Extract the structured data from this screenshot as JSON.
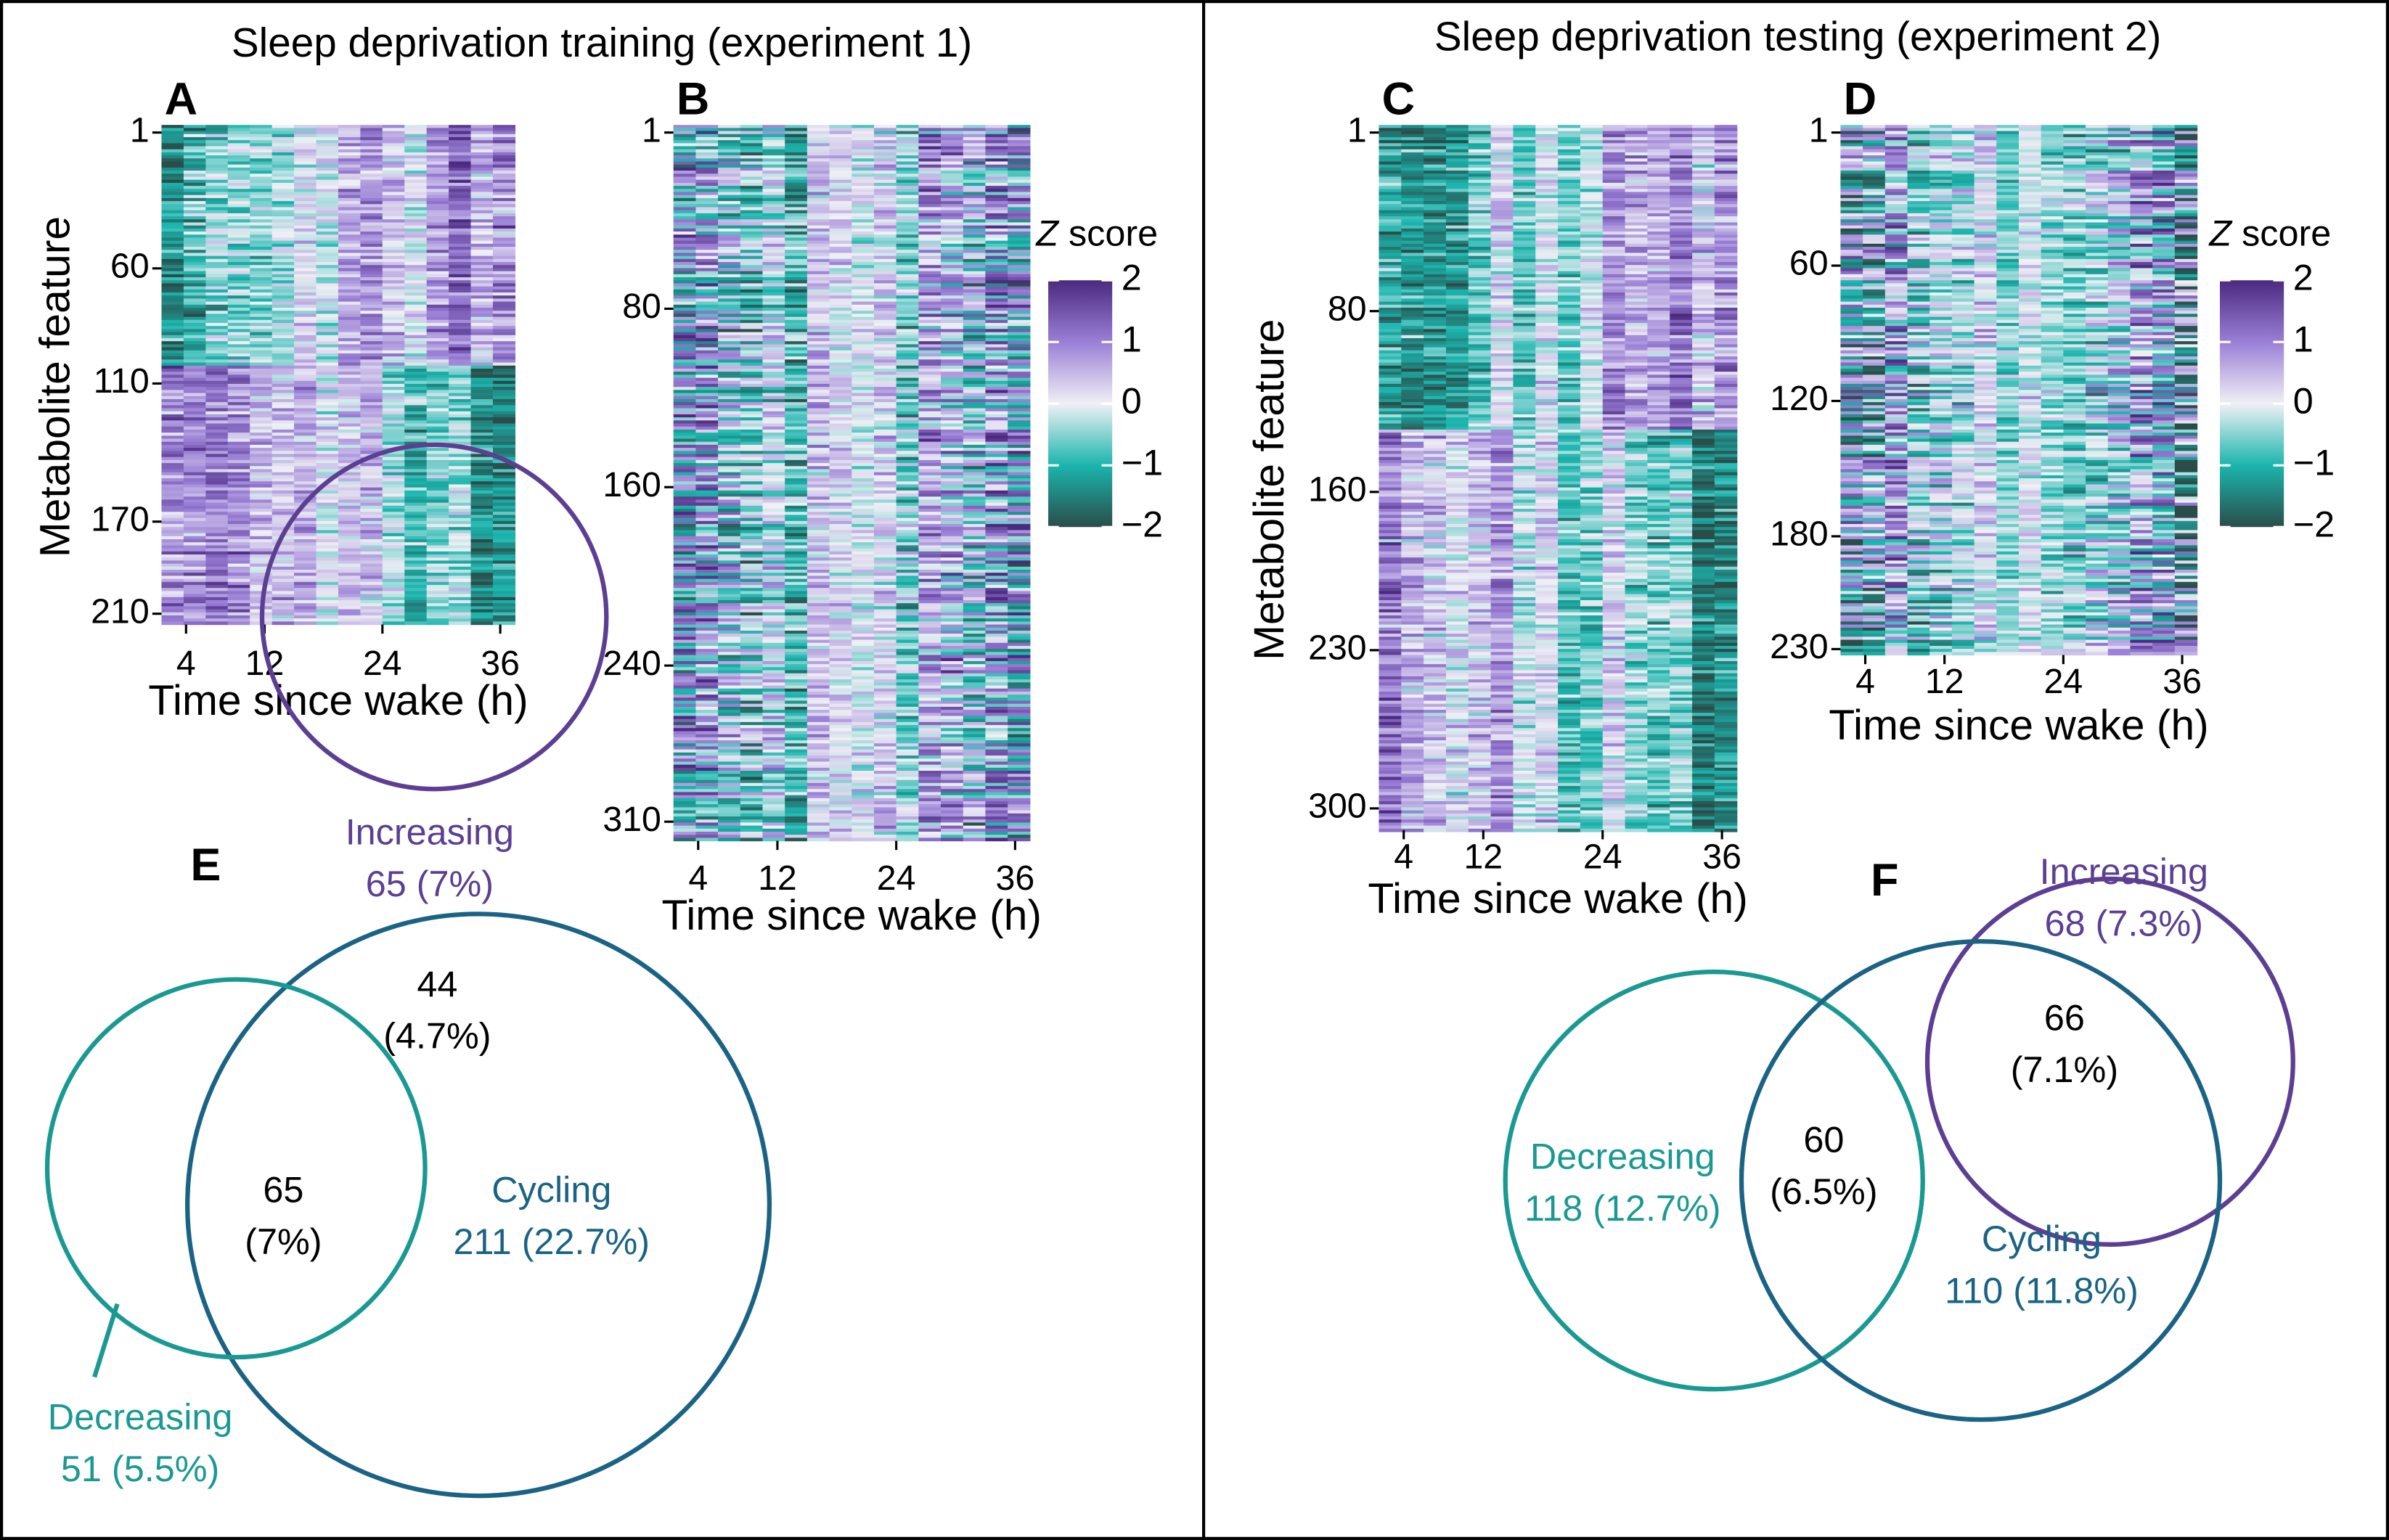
{
  "panels": [
    {
      "title": "Sleep deprivation training (experiment 1)"
    },
    {
      "title": "Sleep deprivation testing (experiment 2)"
    }
  ],
  "heatmaps": [
    {
      "label": "A",
      "y_axis_label": "Metabolite feature",
      "ylim": [
        1,
        218
      ],
      "yticks": [
        1,
        60,
        110,
        170,
        210
      ],
      "xlim": [
        1.5,
        37.5
      ],
      "xticks": [
        4,
        12,
        24,
        36
      ],
      "x_axis_label": "Time since wake (h)"
    },
    {
      "label": "B",
      "ylim": [
        1,
        322
      ],
      "yticks": [
        1,
        80,
        160,
        240,
        310
      ],
      "xlim": [
        1.5,
        37.5
      ],
      "xticks": [
        4,
        12,
        24,
        36
      ],
      "x_axis_label": "Time since wake (h)"
    },
    {
      "label": "C",
      "y_axis_label": "Metabolite feature",
      "ylim": [
        1,
        313
      ],
      "yticks": [
        1,
        80,
        160,
        230,
        300
      ],
      "xlim": [
        1.5,
        37.5
      ],
      "xticks": [
        4,
        12,
        24,
        36
      ],
      "x_axis_label": "Time since wake (h)"
    },
    {
      "label": "D",
      "ylim": [
        1,
        236
      ],
      "yticks": [
        1,
        60,
        120,
        180,
        230
      ],
      "xlim": [
        1.5,
        37.5
      ],
      "xticks": [
        4,
        12,
        24,
        36
      ],
      "x_axis_label": "Time since wake (h)"
    }
  ],
  "colorbars": [
    {
      "title_italic": "Z",
      "title": "score",
      "ylim": [
        -2,
        2
      ],
      "ticks": [
        2,
        1,
        0,
        {
          "value": -1,
          "label": "−1"
        },
        {
          "value": -2,
          "label": "−2"
        }
      ]
    },
    {
      "title_italic": "Z",
      "title": "score",
      "ylim": [
        -2,
        2
      ],
      "ticks": [
        2,
        1,
        0,
        {
          "value": -1,
          "label": "−1"
        },
        {
          "value": -2,
          "label": "−2"
        }
      ]
    }
  ],
  "venns": [
    {
      "label": "E",
      "regions": [
        {
          "lines": [
            "Increasing",
            "65 (7%)"
          ]
        },
        {
          "lines": [
            "44",
            "(4.7%)"
          ]
        },
        {
          "lines": [
            "65",
            "(7%)"
          ]
        },
        {
          "lines": [
            "Cycling",
            "211 (22.7%)"
          ]
        },
        {
          "lines": [
            "Decreasing",
            "51 (5.5%)"
          ]
        }
      ]
    },
    {
      "label": "F",
      "regions": [
        {
          "lines": [
            "Increasing",
            "68 (7.3%)"
          ]
        },
        {
          "lines": [
            "66",
            "(7.1%)"
          ]
        },
        {
          "lines": [
            "60",
            "(6.5%)"
          ]
        },
        {
          "lines": [
            "Decreasing",
            "118 (12.7%)"
          ]
        },
        {
          "lines": [
            "Cycling",
            "110 (11.8%)"
          ]
        }
      ]
    }
  ]
}
